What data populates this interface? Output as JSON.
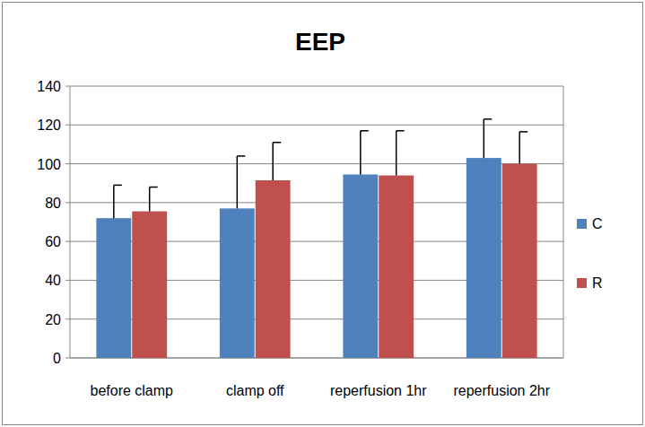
{
  "chart_data": {
    "type": "bar",
    "title": "EEP",
    "categories": [
      "before clamp",
      "clamp off",
      "reperfusion 1hr",
      "reperfusion 2hr"
    ],
    "series": [
      {
        "name": "C",
        "color": "#4f81bd",
        "values": [
          72,
          77,
          94.5,
          103
        ],
        "errors": [
          17,
          27,
          22.5,
          20
        ]
      },
      {
        "name": "R",
        "color": "#c0504d",
        "values": [
          75.5,
          91.5,
          94,
          100
        ],
        "errors": [
          12.5,
          19.5,
          23,
          16.5
        ]
      }
    ],
    "ylim": [
      0,
      140
    ],
    "yticks": [
      0,
      20,
      40,
      60,
      80,
      100,
      120,
      140
    ],
    "grid": true,
    "legend": "right"
  }
}
